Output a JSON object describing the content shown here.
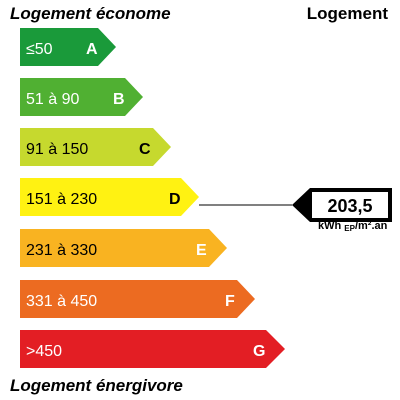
{
  "header": {
    "left_title": "Logement économe",
    "right_title": "Logement"
  },
  "footer": {
    "title": "Logement énergivore"
  },
  "classes": [
    {
      "range": "≤50",
      "letter": "A",
      "color": "#1a9a3a"
    },
    {
      "range": "51 à 90",
      "letter": "B",
      "color": "#50b032"
    },
    {
      "range": "91 à 150",
      "letter": "C",
      "color": "#c6d92e"
    },
    {
      "range": "151 à 230",
      "letter": "D",
      "color": "#fff212"
    },
    {
      "range": "231 à 330",
      "letter": "E",
      "color": "#f9b321"
    },
    {
      "range": "331 à 450",
      "letter": "F",
      "color": "#ec6b21"
    },
    {
      "range": ">450",
      "letter": "G",
      "color": "#e31e24"
    }
  ],
  "indicator": {
    "value": "203,5",
    "unit_main": "kWh",
    "unit_sub": "EP",
    "unit_rest": "/m².an",
    "class": "D"
  }
}
